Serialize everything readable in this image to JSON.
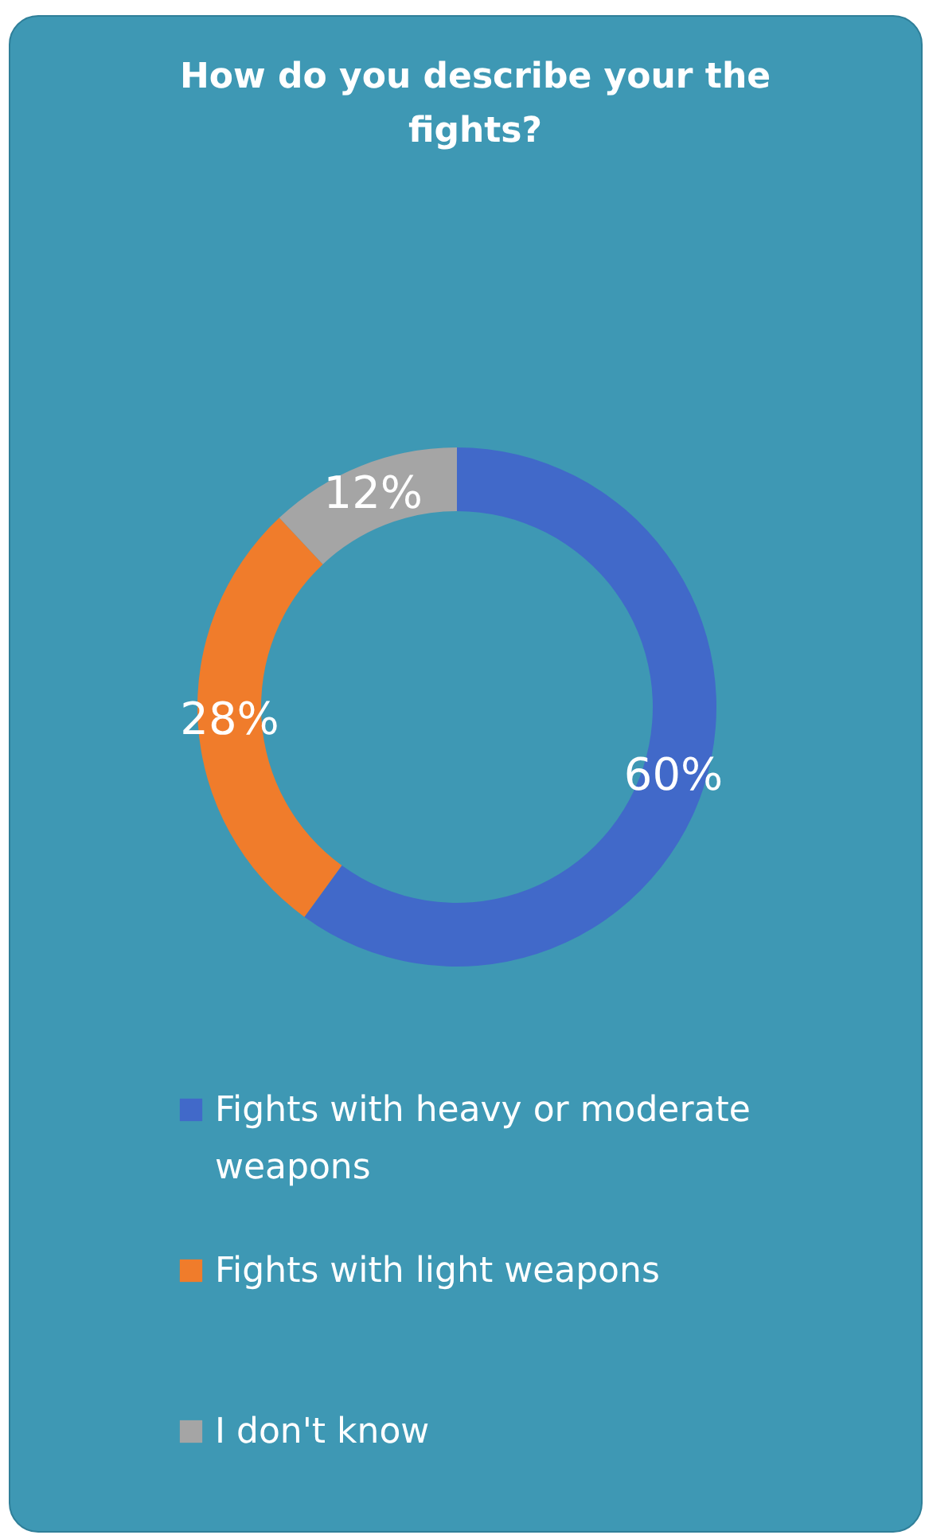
{
  "chart_data": {
    "type": "donut",
    "title": "How do you describe your the fights?",
    "categories": [
      "Fights with heavy or moderate weapons",
      "Fights with light weapons",
      "I don't know"
    ],
    "values": [
      60,
      28,
      12
    ],
    "colors": [
      "#4169c9",
      "#f07c2b",
      "#a5a5a5"
    ],
    "value_labels": [
      "60%",
      "28%",
      "12%"
    ],
    "legend": "bottom"
  }
}
